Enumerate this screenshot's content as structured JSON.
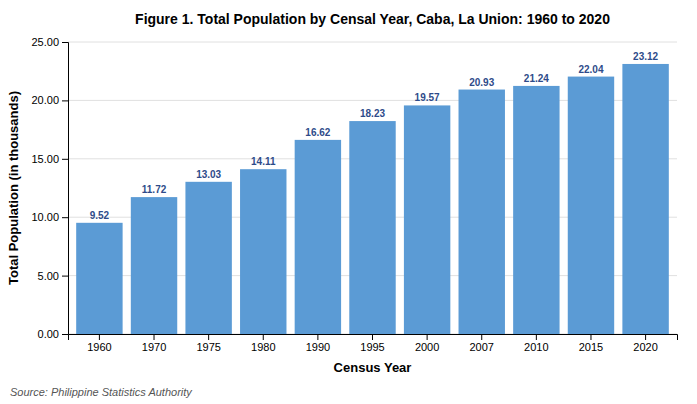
{
  "chart_data": {
    "type": "bar",
    "title": "Figure 1. Total Population by Censal Year, Caba, La Union: 1960 to 2020",
    "xlabel": "Census Year",
    "ylabel": "Total Population (in thousands)",
    "annotations": [
      "Source: Philippine Statistics Authority"
    ],
    "categories": [
      "1960",
      "1970",
      "1975",
      "1980",
      "1990",
      "1995",
      "2000",
      "2007",
      "2010",
      "2015",
      "2020"
    ],
    "values": [
      9.52,
      11.72,
      13.03,
      14.11,
      16.62,
      18.23,
      19.57,
      20.93,
      21.24,
      22.04,
      23.12
    ],
    "color": "#5b9bd5",
    "ylim": [
      0,
      25
    ],
    "yticks": [
      {
        "value": 0,
        "label": "0.00"
      },
      {
        "value": 5,
        "label": "5.00"
      },
      {
        "value": 10,
        "label": "10.00"
      },
      {
        "value": 15,
        "label": "15.00"
      },
      {
        "value": 20,
        "label": "20.00"
      },
      {
        "value": 25,
        "label": "25.00"
      }
    ],
    "grid": true,
    "data_labels": true
  }
}
